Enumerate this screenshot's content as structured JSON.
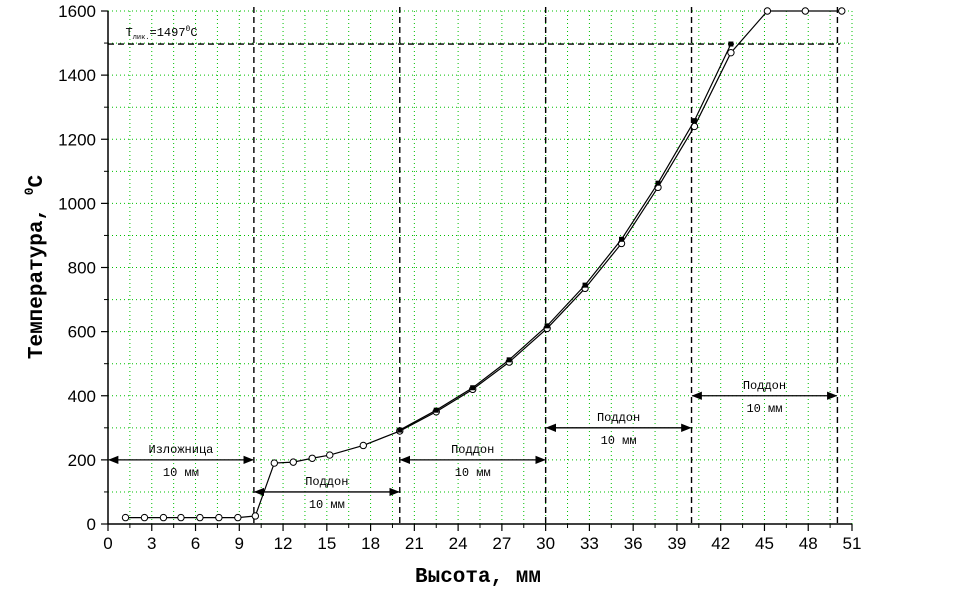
{
  "chart_data": {
    "type": "line",
    "xlabel": "Высота, мм",
    "ylabel": "Температура, ",
    "ylabel_unit": "C",
    "ylabel_sup": "0",
    "xlim": [
      0,
      51
    ],
    "ylim": [
      0,
      1600
    ],
    "x_ticks": [
      0,
      3,
      6,
      9,
      12,
      15,
      18,
      21,
      24,
      27,
      30,
      33,
      36,
      39,
      42,
      45,
      48,
      51
    ],
    "y_ticks": [
      0,
      200,
      400,
      600,
      800,
      1000,
      1200,
      1400,
      1600
    ],
    "grid": true,
    "series": [
      {
        "marker": "open-circle",
        "x": [
          1.2,
          2.5,
          3.8,
          5.0,
          6.3,
          7.6,
          8.9,
          10.1,
          11.4,
          12.7,
          14.0,
          15.2,
          17.5,
          20.0,
          22.5,
          25.0,
          27.5,
          30.1,
          32.7,
          35.2,
          37.7,
          40.2,
          42.7,
          45.2,
          47.8,
          50.3
        ],
        "y": [
          20,
          20,
          20,
          20,
          20,
          20,
          20,
          25,
          190,
          193,
          205,
          215,
          245,
          290,
          350,
          420,
          505,
          610,
          735,
          875,
          1050,
          1240,
          1470,
          1600,
          1600,
          1600
        ]
      },
      {
        "marker": "filled-square",
        "x": [
          20.0,
          22.5,
          25.0,
          27.5,
          30.1,
          32.7,
          35.2,
          37.7,
          40.2,
          42.7
        ],
        "y": [
          293,
          355,
          425,
          512,
          618,
          745,
          888,
          1063,
          1258,
          1497
        ]
      }
    ],
    "reference_lines": {
      "horizontal": [
        1497
      ],
      "vertical": [
        10,
        20,
        30,
        40,
        50
      ]
    },
    "annotations": {
      "t_liq_label": "T",
      "t_liq_sub": "лик.",
      "t_liq_value": "=1497",
      "t_liq_sup": "0",
      "t_liq_unit": "C",
      "zones": [
        {
          "name": "Изложница",
          "size": "10 мм",
          "x_from": 0,
          "x_to": 10,
          "y": 200
        },
        {
          "name": "Поддон",
          "size": "10 мм",
          "x_from": 10,
          "x_to": 20,
          "y": 100
        },
        {
          "name": "Поддон",
          "size": "10 мм",
          "x_from": 20,
          "x_to": 30,
          "y": 200
        },
        {
          "name": "Поддон",
          "size": "10 мм",
          "x_from": 30,
          "x_to": 40,
          "y": 300
        },
        {
          "name": "Поддон",
          "size": "10 мм",
          "x_from": 40,
          "x_to": 50,
          "y": 400
        }
      ]
    }
  }
}
